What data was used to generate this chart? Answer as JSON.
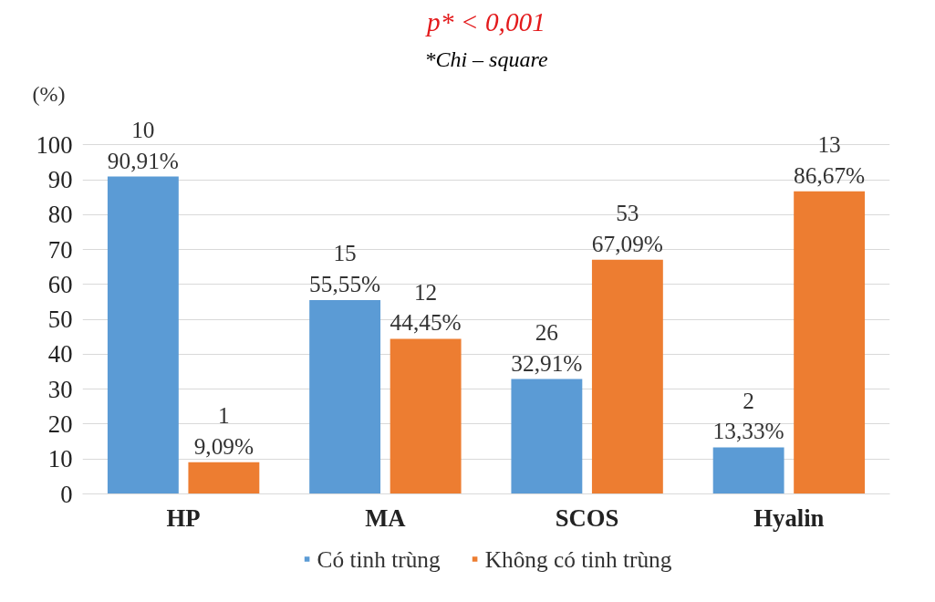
{
  "chart_data": {
    "type": "bar",
    "ylabel": "(%)",
    "categories": [
      "HP",
      "MA",
      "SCOS",
      "Hyalin"
    ],
    "series": [
      {
        "name": "Có tinh trùng",
        "color": "#5b9bd5",
        "values": [
          90.91,
          55.55,
          32.91,
          13.33
        ],
        "value_labels": [
          "10\n90,91%",
          "15\n55,55%",
          "26\n32,91%",
          "2\n13,33%"
        ]
      },
      {
        "name": "Không có tinh trùng",
        "color": "#ed7d31",
        "values": [
          9.09,
          44.45,
          67.09,
          86.67
        ],
        "value_labels": [
          "1\n9,09%",
          "12\n44,45%",
          "53\n67,09%",
          "13\n86,67%"
        ]
      }
    ],
    "ylim": [
      0,
      100
    ],
    "yticks": [
      0,
      10,
      20,
      30,
      40,
      50,
      60,
      70,
      80,
      90,
      100
    ],
    "grid": "y",
    "legend": "bottom",
    "annotations": [
      "p* < 0,001",
      "*Chi – square"
    ]
  }
}
